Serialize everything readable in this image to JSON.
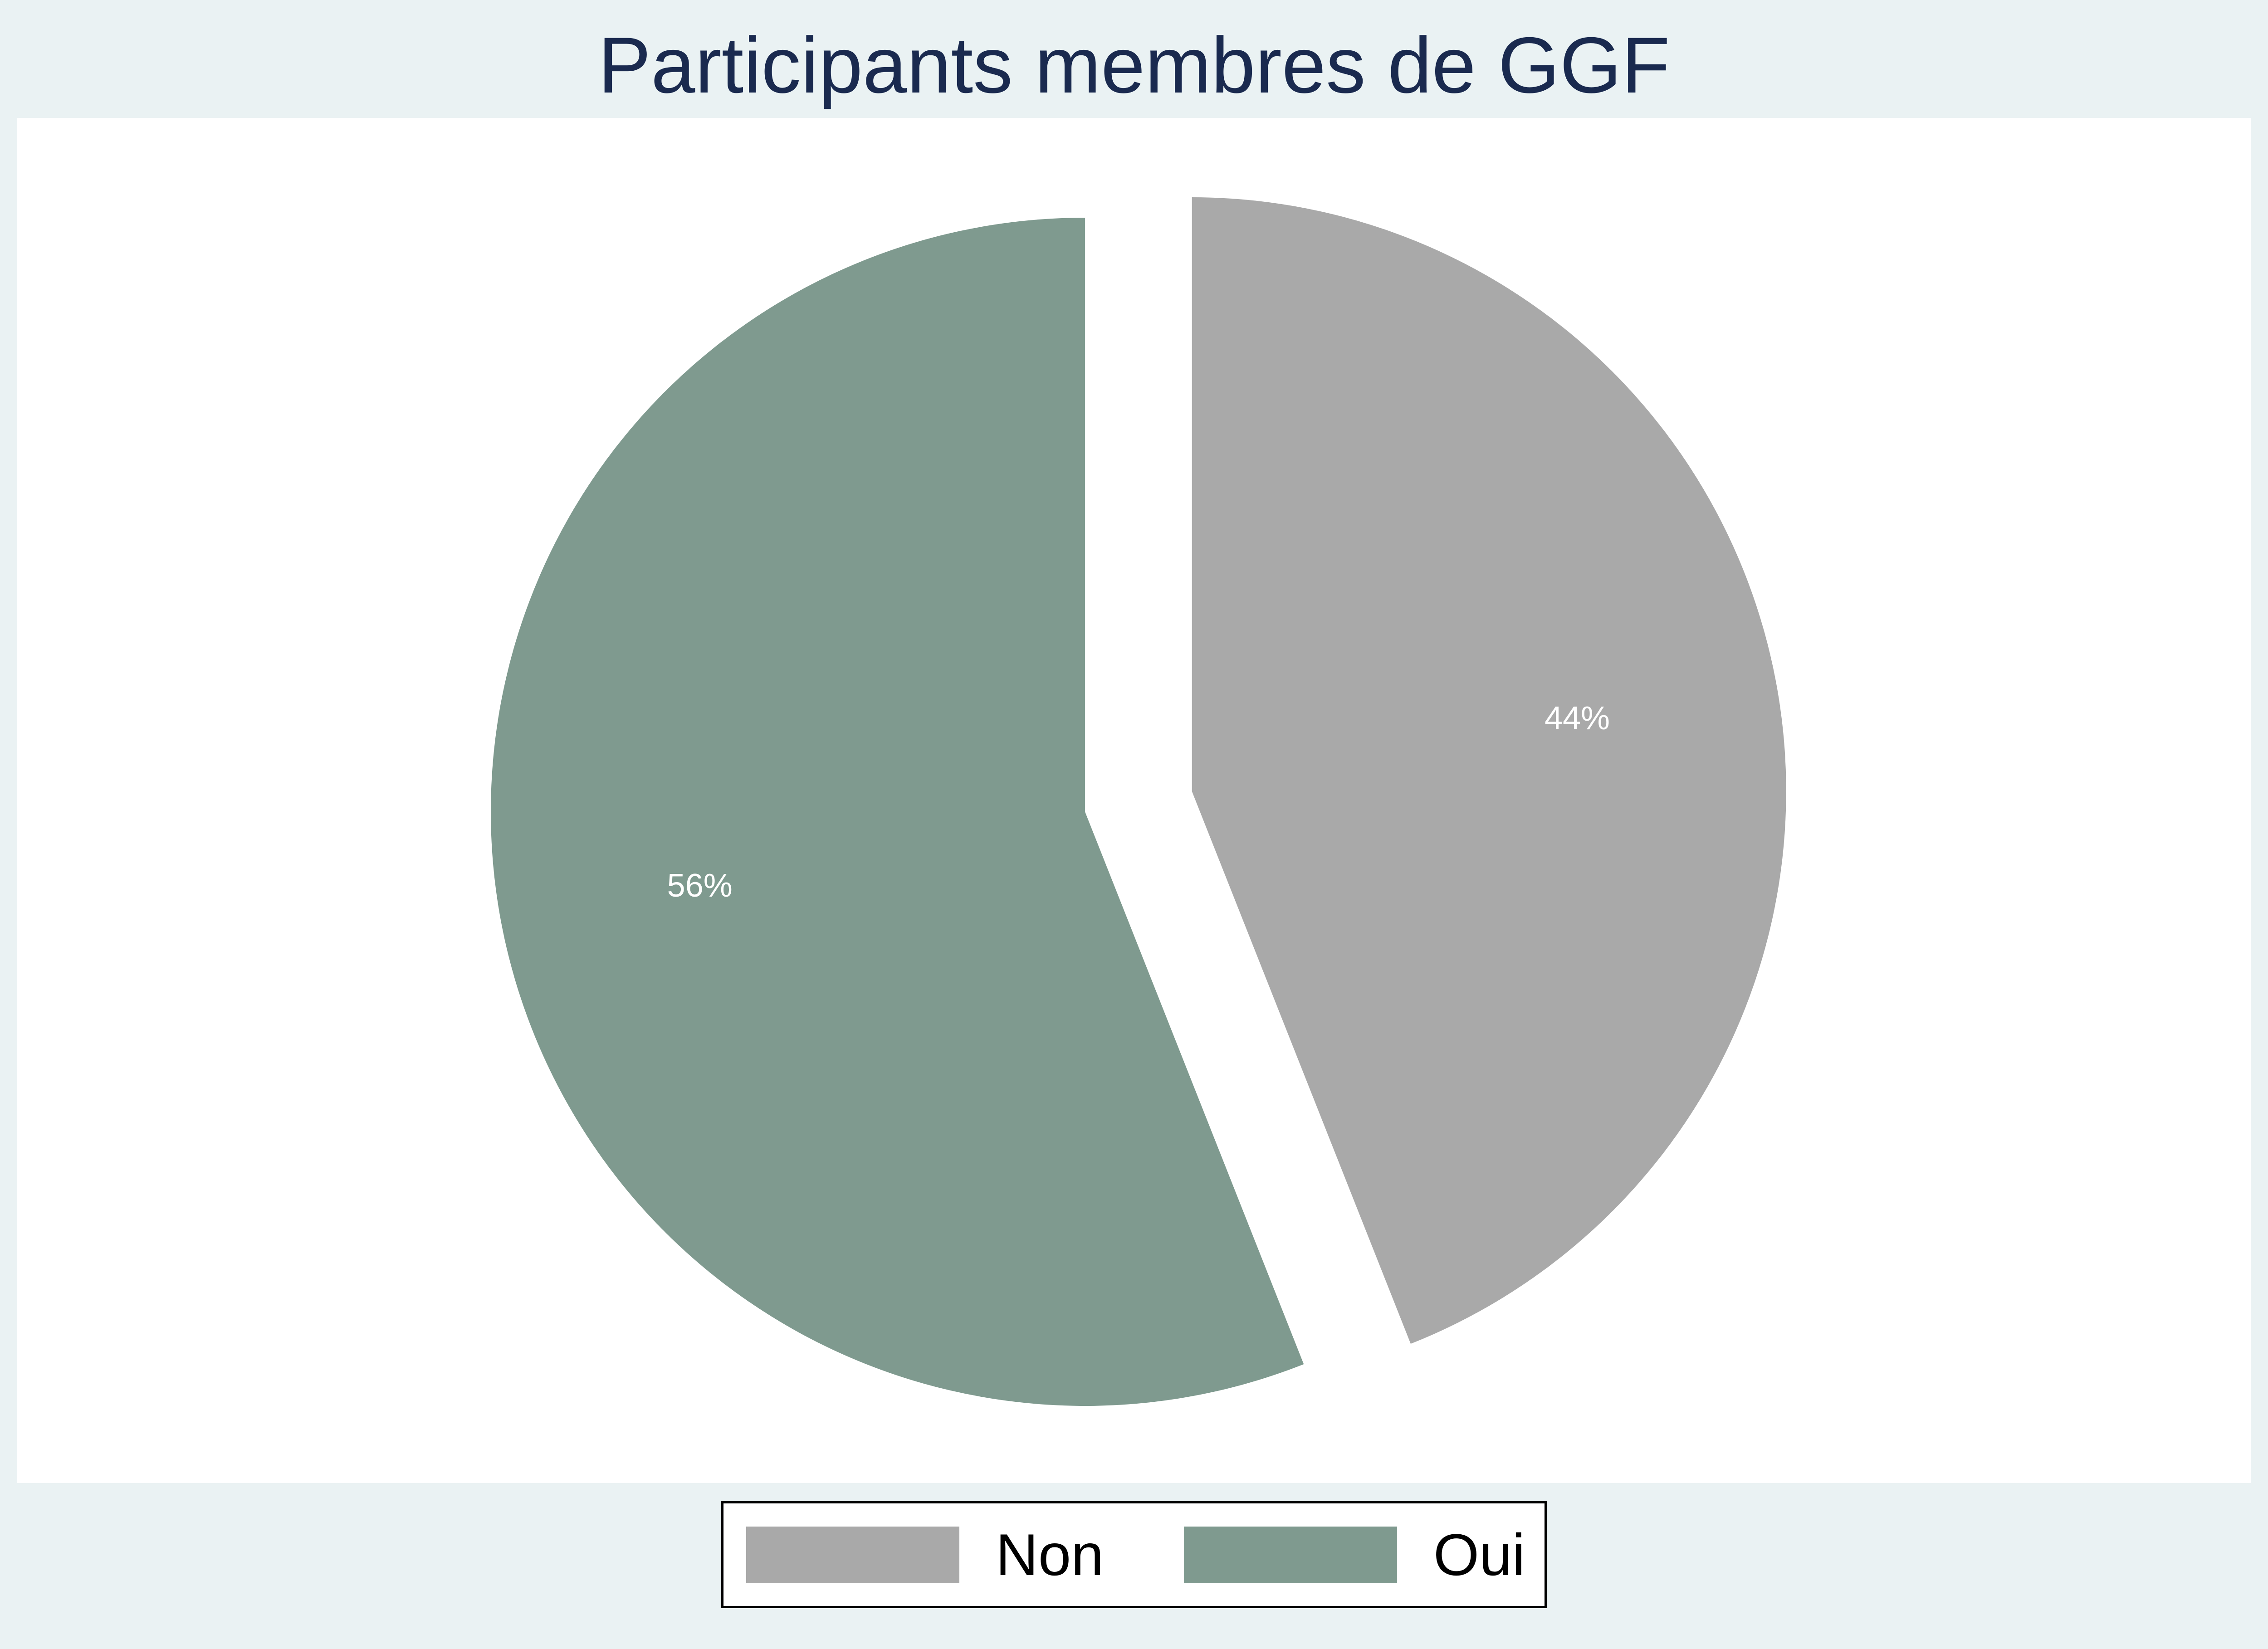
{
  "chart_data": {
    "type": "pie",
    "title": "Participants membres de GGF",
    "slices": [
      {
        "name": "Non",
        "value": 44,
        "label": "44%",
        "color": "#a9a9a9",
        "exploded": true
      },
      {
        "name": "Oui",
        "value": 56,
        "label": "56%",
        "color": "#7f9a8f",
        "exploded": false
      }
    ],
    "start_angle_deg": 90,
    "direction": "clockwise",
    "legend_position": "bottom",
    "label_color": "#ffffff",
    "background_color": "#eaf2f3",
    "plot_background_color": "#ffffff"
  }
}
